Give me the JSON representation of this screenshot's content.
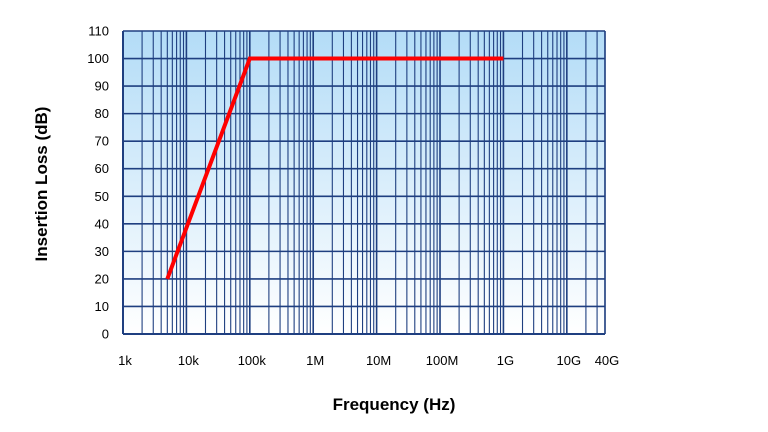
{
  "chart_data": {
    "type": "line",
    "title": "",
    "xlabel": "Frequency (Hz)",
    "ylabel": "Insertion Loss (dB)",
    "x_scale": "log",
    "xlim": [
      1000,
      40000000000
    ],
    "ylim": [
      0,
      110
    ],
    "x_ticks": [
      {
        "value": 1000,
        "label": "1k"
      },
      {
        "value": 10000,
        "label": "10k"
      },
      {
        "value": 100000,
        "label": "100k"
      },
      {
        "value": 1000000,
        "label": "1M"
      },
      {
        "value": 10000000,
        "label": "10M"
      },
      {
        "value": 100000000,
        "label": "100M"
      },
      {
        "value": 1000000000,
        "label": "1G"
      },
      {
        "value": 10000000000,
        "label": "10G"
      },
      {
        "value": 40000000000,
        "label": "40G"
      }
    ],
    "y_ticks": [
      0,
      10,
      20,
      30,
      40,
      50,
      60,
      70,
      80,
      90,
      100,
      110
    ],
    "grid": true,
    "series": [
      {
        "color": "#ff0000",
        "points": [
          {
            "x": 5000,
            "y": 20
          },
          {
            "x": 100000,
            "y": 100
          },
          {
            "x": 1000000000,
            "y": 100
          }
        ]
      }
    ],
    "colors": {
      "plot_gradient_top": "#b3dcf7",
      "plot_gradient_bottom": "#ffffff",
      "grid": "#1f3f80",
      "line": "#ff0000"
    }
  }
}
